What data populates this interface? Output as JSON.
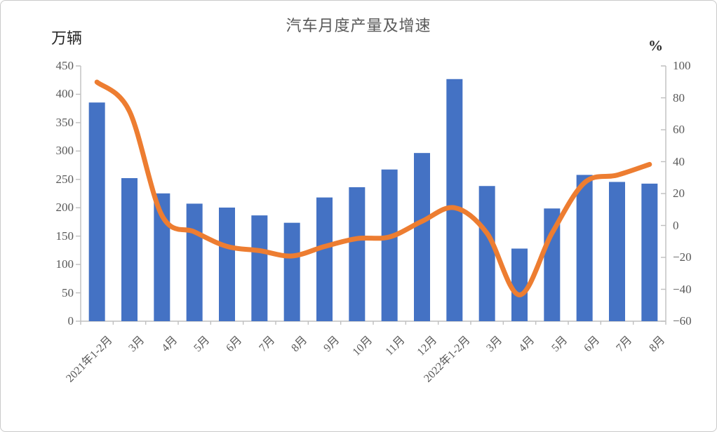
{
  "chart": {
    "title": "汽车月度产量及增速",
    "left_axis_unit": "万辆",
    "right_axis_unit": "%",
    "colors": {
      "bar": "#4472C4",
      "line": "#ED7D31",
      "axis_line": "#BFBFBF",
      "tick_label": "#595959",
      "title_text": "#595959",
      "unit_text": "#262626",
      "background": "#FFFFFF"
    }
  },
  "chart_data": {
    "type": "bar",
    "title": "汽车月度产量及增速",
    "categories": [
      "2021年1-2月",
      "3月",
      "4月",
      "5月",
      "6月",
      "7月",
      "8月",
      "9月",
      "10月",
      "11月",
      "12月",
      "2022年1-2月",
      "3月",
      "4月",
      "5月",
      "6月",
      "7月",
      "8月"
    ],
    "series": [
      {
        "role": "production-bars",
        "type": "bar",
        "axis": "left",
        "unit": "万辆",
        "values": [
          385.5,
          252.2,
          225.3,
          207.2,
          200.3,
          186.5,
          173.5,
          218.1,
          236.2,
          267.4,
          296.5,
          426.8,
          238.3,
          128.0,
          198.7,
          257.9,
          245.5,
          242.5
        ]
      },
      {
        "role": "growth-line",
        "type": "line",
        "axis": "right",
        "unit": "%",
        "smooth": true,
        "values": [
          89.9,
          71.6,
          6.3,
          -4.0,
          -13.1,
          -15.8,
          -19.1,
          -13.2,
          -8.2,
          -7.2,
          2.6,
          11.1,
          -4.9,
          -43.5,
          -4.8,
          26.8,
          31.5,
          38.3
        ]
      }
    ],
    "left_axis": {
      "label": "万辆",
      "min": 0,
      "max": 450,
      "step": 50,
      "tick_labels": [
        "0",
        "50",
        "100",
        "150",
        "200",
        "250",
        "300",
        "350",
        "400",
        "450"
      ]
    },
    "right_axis": {
      "label": "%",
      "min": -60,
      "max": 100,
      "step": 20,
      "tick_labels": [
        "−60",
        "−40",
        "−20",
        "0",
        "20",
        "40",
        "60",
        "80",
        "100"
      ]
    },
    "grid": false,
    "legend": false,
    "x_label_rotation_deg": -45
  }
}
